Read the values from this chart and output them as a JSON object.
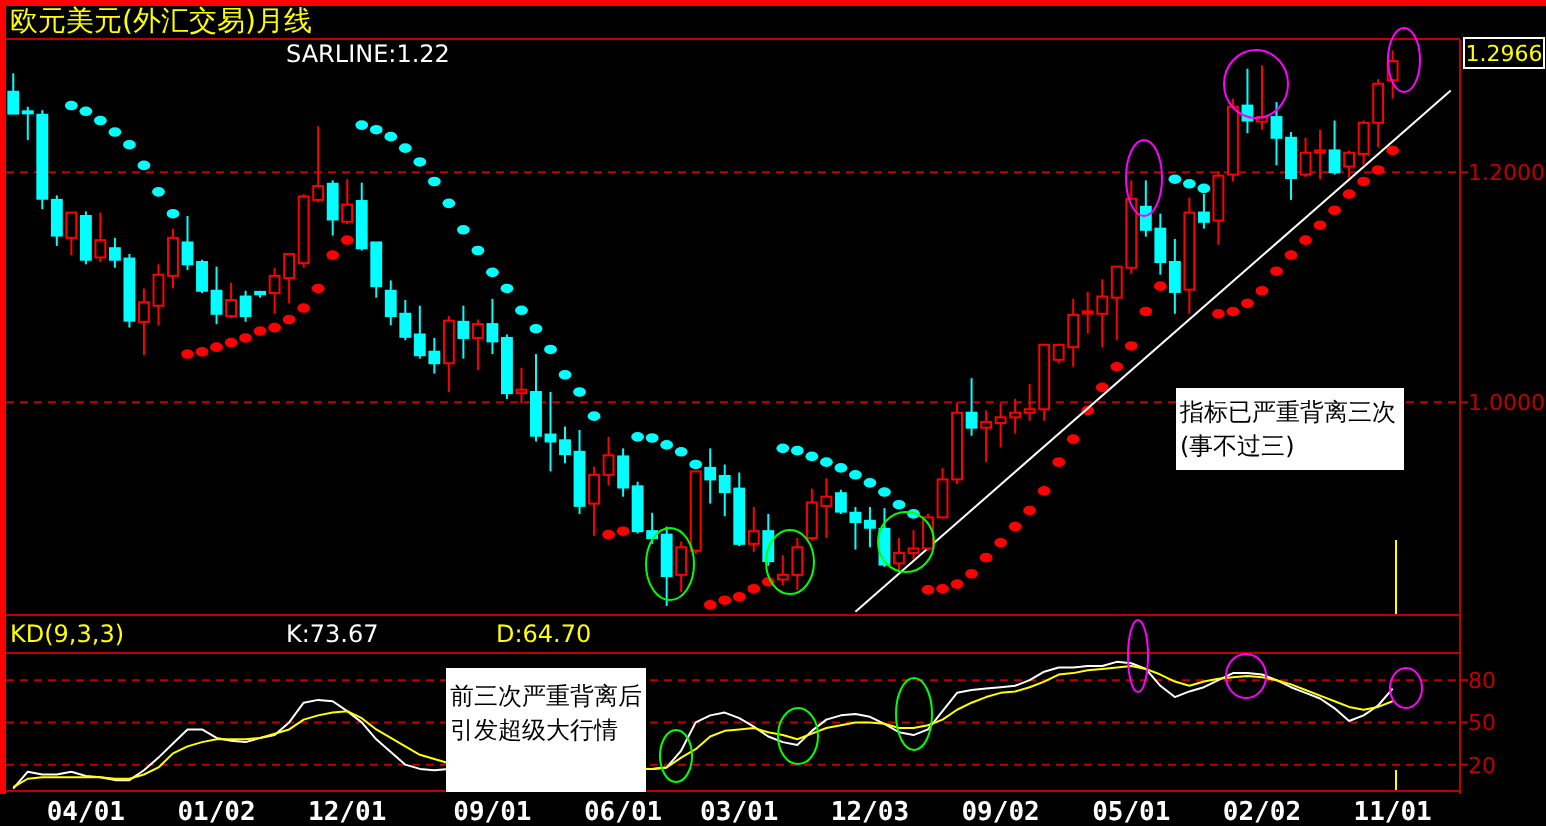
{
  "chart_data": [
    {
      "type": "candlestick",
      "title": "欧元美元(外汇交易)月线",
      "categories": [
        null,
        null,
        null,
        null,
        null,
        null,
        null,
        null,
        null,
        null,
        null,
        null,
        null,
        null,
        null,
        null,
        null,
        null,
        null,
        null,
        null,
        null,
        null,
        null,
        null,
        null,
        null,
        null,
        null,
        null,
        null,
        null,
        null,
        null,
        null,
        null,
        null,
        null,
        null,
        null,
        null,
        null,
        null,
        null,
        null,
        null,
        null,
        null,
        null,
        null,
        null,
        null,
        null,
        null,
        null,
        null,
        null,
        null,
        null,
        null,
        null,
        null,
        null,
        null,
        null,
        null,
        null,
        null,
        null,
        null,
        null,
        null,
        null,
        null,
        null,
        null,
        null,
        null,
        null,
        null,
        null,
        null,
        null,
        null,
        null,
        null,
        null,
        null,
        null,
        null,
        null,
        null,
        null,
        null,
        null,
        null,
        null,
        null,
        null,
        null
      ],
      "ohlc": [
        [
          1.27,
          1.286,
          1.251,
          1.251
        ],
        [
          1.253,
          1.257,
          1.228,
          1.252
        ],
        [
          1.25,
          1.254,
          1.168,
          1.177
        ],
        [
          1.176,
          1.18,
          1.136,
          1.145
        ],
        [
          1.143,
          1.165,
          1.128,
          1.165
        ],
        [
          1.162,
          1.166,
          1.12,
          1.124
        ],
        [
          1.126,
          1.165,
          1.122,
          1.141
        ],
        [
          1.134,
          1.143,
          1.117,
          1.124
        ],
        [
          1.125,
          1.129,
          1.065,
          1.071
        ],
        [
          1.07,
          1.099,
          1.041,
          1.087
        ],
        [
          1.084,
          1.12,
          1.067,
          1.111
        ],
        [
          1.11,
          1.151,
          1.099,
          1.143
        ],
        [
          1.139,
          1.162,
          1.115,
          1.12
        ],
        [
          1.122,
          1.124,
          1.095,
          1.097
        ],
        [
          1.097,
          1.118,
          1.068,
          1.077
        ],
        [
          1.075,
          1.104,
          1.073,
          1.089
        ],
        [
          1.092,
          1.097,
          1.07,
          1.075
        ],
        [
          1.096,
          1.097,
          1.091,
          1.094
        ],
        [
          1.095,
          1.117,
          1.077,
          1.11
        ],
        [
          1.108,
          1.129,
          1.086,
          1.129
        ],
        [
          1.121,
          1.181,
          1.117,
          1.179
        ],
        [
          1.176,
          1.24,
          1.174,
          1.188
        ],
        [
          1.19,
          1.193,
          1.145,
          1.159
        ],
        [
          1.157,
          1.194,
          1.155,
          1.172
        ],
        [
          1.175,
          1.191,
          1.132,
          1.134
        ],
        [
          1.139,
          1.139,
          1.091,
          1.101
        ],
        [
          1.097,
          1.106,
          1.067,
          1.075
        ],
        [
          1.077,
          1.089,
          1.054,
          1.057
        ],
        [
          1.059,
          1.084,
          1.038,
          1.041
        ],
        [
          1.044,
          1.056,
          1.025,
          1.034
        ],
        [
          1.034,
          1.075,
          1.009,
          1.071
        ],
        [
          1.07,
          1.084,
          1.038,
          1.056
        ],
        [
          1.056,
          1.072,
          1.028,
          1.068
        ],
        [
          1.068,
          1.09,
          1.042,
          1.053
        ],
        [
          1.056,
          1.059,
          1.003,
          1.008
        ],
        [
          1.008,
          1.03,
          0.999,
          1.011
        ],
        [
          1.009,
          1.042,
          0.966,
          0.971
        ],
        [
          0.972,
          1.009,
          0.94,
          0.966
        ],
        [
          0.967,
          0.979,
          0.947,
          0.955
        ],
        [
          0.957,
          0.976,
          0.903,
          0.91
        ],
        [
          0.912,
          0.944,
          0.884,
          0.937
        ],
        [
          0.937,
          0.97,
          0.928,
          0.954
        ],
        [
          0.953,
          0.96,
          0.918,
          0.926
        ],
        [
          0.927,
          0.931,
          0.886,
          0.888
        ],
        [
          0.888,
          0.904,
          0.877,
          0.882
        ],
        [
          0.885,
          0.892,
          0.823,
          0.849
        ],
        [
          0.85,
          0.879,
          0.835,
          0.874
        ],
        [
          0.871,
          0.94,
          0.868,
          0.94
        ],
        [
          0.943,
          0.96,
          0.912,
          0.933
        ],
        [
          0.936,
          0.946,
          0.901,
          0.922
        ],
        [
          0.925,
          0.939,
          0.875,
          0.877
        ],
        [
          0.877,
          0.909,
          0.87,
          0.888
        ],
        [
          0.888,
          0.903,
          0.858,
          0.862
        ],
        [
          0.846,
          0.867,
          0.841,
          0.85
        ],
        [
          0.85,
          0.882,
          0.837,
          0.874
        ],
        [
          0.882,
          0.925,
          0.88,
          0.913
        ],
        [
          0.91,
          0.934,
          0.882,
          0.918
        ],
        [
          0.921,
          0.924,
          0.903,
          0.905
        ],
        [
          0.904,
          0.909,
          0.872,
          0.896
        ],
        [
          0.897,
          0.909,
          0.874,
          0.891
        ],
        [
          0.89,
          0.908,
          0.857,
          0.859
        ],
        [
          0.86,
          0.882,
          0.853,
          0.869
        ],
        [
          0.869,
          0.889,
          0.864,
          0.873
        ],
        [
          0.873,
          0.903,
          0.871,
          0.9
        ],
        [
          0.9,
          0.943,
          0.899,
          0.933
        ],
        [
          0.933,
          1.0,
          0.929,
          0.991
        ],
        [
          0.991,
          1.021,
          0.971,
          0.978
        ],
        [
          0.978,
          0.993,
          0.948,
          0.983
        ],
        [
          0.982,
          0.999,
          0.961,
          0.987
        ],
        [
          0.987,
          1.003,
          0.973,
          0.991
        ],
        [
          0.991,
          1.016,
          0.984,
          0.994
        ],
        [
          0.994,
          1.05,
          0.984,
          1.05
        ],
        [
          1.037,
          1.051,
          1.034,
          1.05
        ],
        [
          1.048,
          1.09,
          1.031,
          1.076
        ],
        [
          1.079,
          1.096,
          1.06,
          1.079
        ],
        [
          1.077,
          1.107,
          1.048,
          1.092
        ],
        [
          1.091,
          1.118,
          1.054,
          1.118
        ],
        [
          1.117,
          1.193,
          1.112,
          1.177
        ],
        [
          1.17,
          1.193,
          1.144,
          1.15
        ],
        [
          1.151,
          1.164,
          1.111,
          1.122
        ],
        [
          1.122,
          1.142,
          1.077,
          1.096
        ],
        [
          1.098,
          1.178,
          1.077,
          1.165
        ],
        [
          1.165,
          1.181,
          1.151,
          1.157
        ],
        [
          1.158,
          1.201,
          1.137,
          1.197
        ],
        [
          1.198,
          1.264,
          1.192,
          1.257
        ],
        [
          1.258,
          1.29,
          1.234,
          1.245
        ],
        [
          1.244,
          1.293,
          1.237,
          1.248
        ],
        [
          1.248,
          1.261,
          1.206,
          1.23
        ],
        [
          1.23,
          1.235,
          1.176,
          1.195
        ],
        [
          1.198,
          1.23,
          1.196,
          1.217
        ],
        [
          1.217,
          1.237,
          1.194,
          1.219
        ],
        [
          1.219,
          1.245,
          1.198,
          1.2
        ],
        [
          1.205,
          1.219,
          1.195,
          1.217
        ],
        [
          1.216,
          1.245,
          1.206,
          1.243
        ],
        [
          1.243,
          1.281,
          1.222,
          1.277
        ],
        [
          1.28,
          1.306,
          1.264,
          1.2966
        ],
        null,
        null,
        null,
        null
      ],
      "colors": [
        "#00ffff",
        "#00ffff",
        "#00ffff",
        "#00ffff",
        "#ff0000",
        "#00ffff",
        "#ff0000",
        "#00ffff",
        "#00ffff",
        "#ff0000",
        "#ff0000",
        "#ff0000",
        "#00ffff",
        "#00ffff",
        "#00ffff",
        "#ff0000",
        "#00ffff",
        "#00ffff",
        "#ff0000",
        "#ff0000",
        "#ff0000",
        "#ff0000",
        "#00ffff",
        "#ff0000",
        "#00ffff",
        "#00ffff",
        "#00ffff",
        "#00ffff",
        "#00ffff",
        "#00ffff",
        "#ff0000",
        "#00ffff",
        "#ff0000",
        "#00ffff",
        "#00ffff",
        "#ff0000",
        "#00ffff",
        "#00ffff",
        "#00ffff",
        "#00ffff",
        "#ff0000",
        "#ff0000",
        "#00ffff",
        "#00ffff",
        "#00ffff",
        "#00ffff",
        "#ff0000",
        "#ff0000",
        "#00ffff",
        "#00ffff",
        "#00ffff",
        "#ff0000",
        "#00ffff",
        "#ff0000",
        "#ff0000",
        "#ff0000",
        "#ff0000",
        "#00ffff",
        "#00ffff",
        "#00ffff",
        "#00ffff",
        "#ff0000",
        "#ff0000",
        "#ff0000",
        "#ff0000",
        "#ff0000",
        "#00ffff",
        "#ff0000",
        "#ff0000",
        "#ff0000",
        "#ff0000",
        "#ff0000",
        "#ff0000",
        "#ff0000",
        "#ff0000",
        "#ff0000",
        "#ff0000",
        "#ff0000",
        "#00ffff",
        "#00ffff",
        "#00ffff",
        "#ff0000",
        "#00ffff",
        "#ff0000",
        "#ff0000",
        "#00ffff",
        "#ff0000",
        "#00ffff",
        "#00ffff",
        "#ff0000",
        "#ff0000",
        "#00ffff",
        "#ff0000",
        "#ff0000",
        "#ff0000",
        "#ff0000",
        null,
        null,
        null,
        null
      ],
      "series": [
        {
          "type": "scatter",
          "marker": "circle",
          "color": "#00ffff",
          "values": [
            null,
            null,
            null,
            null,
            1.258,
            1.253,
            1.245,
            1.235,
            1.224,
            1.206,
            1.183,
            1.164,
            null,
            null,
            null,
            null,
            null,
            null,
            null,
            null,
            null,
            null,
            null,
            null,
            1.241,
            1.237,
            1.231,
            1.221,
            1.209,
            1.192,
            1.173,
            1.15,
            1.132,
            1.113,
            1.099,
            1.08,
            1.064,
            1.046,
            1.024,
            1.009,
            0.988,
            null,
            null,
            0.97,
            0.969,
            0.963,
            0.957,
            0.946,
            null,
            null,
            null,
            null,
            null,
            0.96,
            0.958,
            0.953,
            0.948,
            0.943,
            0.937,
            0.93,
            0.922,
            0.911,
            0.903,
            null,
            null,
            null,
            null,
            null,
            null,
            null,
            null,
            null,
            null,
            null,
            null,
            null,
            null,
            null,
            null,
            null,
            1.194,
            1.19,
            1.186,
            null,
            null,
            null,
            null,
            null,
            null,
            null,
            null,
            null,
            null,
            null,
            null,
            null,
            null,
            null,
            null,
            null
          ]
        },
        {
          "type": "scatter",
          "marker": "circle",
          "color": "#ff0000",
          "values": [
            null,
            null,
            null,
            null,
            null,
            null,
            null,
            null,
            null,
            null,
            null,
            null,
            1.042,
            1.044,
            1.048,
            1.052,
            1.056,
            1.062,
            1.065,
            1.072,
            1.082,
            1.099,
            1.128,
            1.141,
            null,
            null,
            null,
            null,
            null,
            null,
            null,
            null,
            null,
            null,
            null,
            null,
            null,
            null,
            null,
            null,
            null,
            0.885,
            0.888,
            null,
            null,
            null,
            null,
            null,
            0.824,
            0.828,
            0.831,
            0.838,
            0.844,
            null,
            null,
            null,
            null,
            null,
            null,
            null,
            null,
            null,
            null,
            0.837,
            0.838,
            0.842,
            0.851,
            0.865,
            0.878,
            0.892,
            0.906,
            0.923,
            0.948,
            0.968,
            0.993,
            1.013,
            1.031,
            1.049,
            1.079,
            1.101,
            null,
            null,
            null,
            1.077,
            1.079,
            1.086,
            1.097,
            1.114,
            1.128,
            1.141,
            1.154,
            1.167,
            1.181,
            1.192,
            1.202,
            1.219,
            null,
            null,
            null,
            null
          ]
        },
        {
          "type": "line",
          "marker": "none",
          "color": "#ffffff",
          "values": [
            null,
            null,
            null,
            null,
            null,
            null,
            null,
            null,
            null,
            null,
            null,
            null,
            null,
            null,
            null,
            null,
            null,
            null,
            null,
            null,
            null,
            null,
            null,
            null,
            null,
            null,
            null,
            null,
            null,
            null,
            null,
            null,
            null,
            null,
            null,
            null,
            null,
            null,
            null,
            null,
            null,
            null,
            null,
            null,
            null,
            null,
            null,
            null,
            null,
            null,
            null,
            null,
            null,
            null,
            null,
            null,
            null,
            null,
            0.818,
            null,
            null,
            null,
            null,
            null,
            null,
            null,
            null,
            null,
            null,
            null,
            null,
            null,
            null,
            null,
            null,
            null,
            null,
            null,
            null,
            null,
            null,
            null,
            null,
            null,
            null,
            null,
            null,
            null,
            null,
            null,
            null,
            null,
            null,
            null,
            null,
            null,
            null,
            null,
            null,
            1.271
          ]
        }
      ],
      "ylim": [
        0.816,
        1.315
      ],
      "yticks": [
        {
          "value": 1,
          "label": "1.0000"
        },
        {
          "value": 1.2,
          "label": "1.2000"
        }
      ],
      "grid": "y",
      "tick_labels": "y",
      "annotations": [
        "SARLINE:1.22",
        "1.2966",
        "指标已严重背离三次(事不过三)"
      ]
    },
    {
      "type": "line",
      "title": "KD(9,3,3)",
      "categories": [
        null,
        null,
        null,
        null,
        null,
        "04/01",
        null,
        null,
        null,
        null,
        null,
        null,
        null,
        null,
        "01/02",
        null,
        null,
        null,
        null,
        null,
        null,
        null,
        null,
        "12/01",
        null,
        null,
        null,
        null,
        null,
        null,
        null,
        null,
        null,
        "09/01",
        null,
        null,
        null,
        null,
        null,
        null,
        null,
        null,
        "06/01",
        null,
        null,
        null,
        null,
        null,
        null,
        null,
        "03/01",
        null,
        null,
        null,
        null,
        null,
        null,
        null,
        null,
        "12/03",
        null,
        null,
        null,
        null,
        null,
        null,
        null,
        null,
        "09/02",
        null,
        null,
        null,
        null,
        null,
        null,
        null,
        null,
        "05/01",
        null,
        null,
        null,
        null,
        null,
        null,
        null,
        null,
        "02/02",
        null,
        null,
        null,
        null,
        null,
        null,
        null,
        null,
        "11/01",
        null,
        null,
        null,
        null
      ],
      "series": [
        {
          "color": "#ffffff",
          "values": [
            3,
            15,
            13,
            13,
            15,
            12,
            11,
            9,
            9,
            16,
            25,
            35,
            45,
            45,
            39,
            37,
            36,
            39,
            41,
            50,
            64,
            66,
            65,
            58,
            50,
            38,
            29,
            20,
            17,
            16,
            17,
            null,
            null,
            null,
            null,
            null,
            null,
            null,
            null,
            null,
            null,
            null,
            null,
            null,
            17,
            18,
            30,
            50,
            55,
            57,
            53,
            47,
            40,
            36,
            34,
            44,
            52,
            55,
            56,
            54,
            49,
            43,
            41,
            45,
            58,
            71,
            73,
            74,
            75,
            76,
            80,
            86,
            89,
            89,
            90,
            90,
            93,
            92,
            88,
            76,
            68,
            72,
            75,
            80,
            85,
            85,
            84,
            80,
            75,
            71,
            67,
            60,
            51,
            55,
            62,
            74,
            null,
            null,
            null,
            null
          ]
        },
        {
          "color": "#ffff00",
          "values": [
            4,
            10,
            11,
            11,
            11,
            11,
            11,
            10,
            10,
            13,
            18,
            28,
            33,
            36,
            38,
            38,
            38,
            39,
            42,
            45,
            52,
            55,
            57,
            58,
            53,
            45,
            39,
            33,
            27,
            24,
            21,
            null,
            null,
            null,
            null,
            null,
            null,
            null,
            null,
            null,
            null,
            null,
            null,
            null,
            17,
            18,
            25,
            31,
            40,
            44,
            45,
            46,
            43,
            41,
            38,
            42,
            46,
            48,
            50,
            50,
            49,
            46,
            46,
            48,
            52,
            59,
            64,
            68,
            71,
            72,
            75,
            79,
            84,
            85,
            87,
            88,
            89,
            90,
            88,
            84,
            79,
            76,
            79,
            81,
            82,
            83,
            82,
            80,
            77,
            73,
            69,
            65,
            61,
            59,
            61,
            65,
            null,
            null,
            null,
            null
          ]
        }
      ],
      "ylim": [
        2,
        100
      ],
      "yticks": [
        20,
        50,
        80
      ],
      "grid": "y",
      "annotations": [
        "K:73.67",
        "D:64.70",
        "前三次严重背离后引发超级大行情"
      ]
    }
  ]
}
